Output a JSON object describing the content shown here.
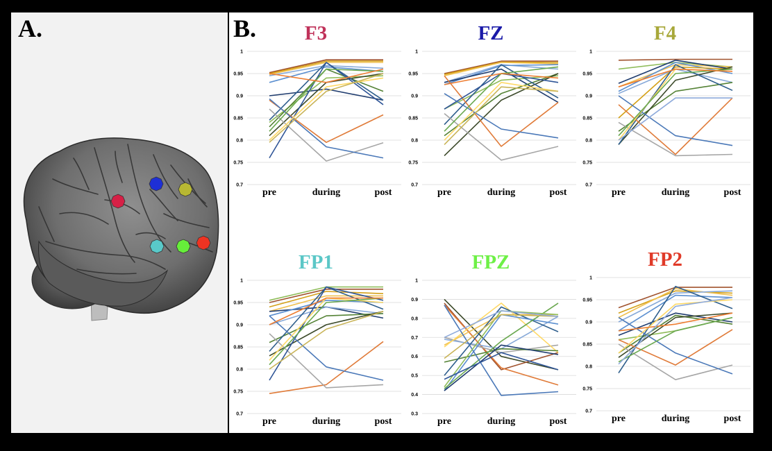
{
  "figure": {
    "panel_a_label": "A.",
    "panel_b_label": "B."
  },
  "electrodes": [
    {
      "name": "F3",
      "color": "#d62046"
    },
    {
      "name": "FZ",
      "color": "#1e2fd6"
    },
    {
      "name": "F4",
      "color": "#b8b833"
    },
    {
      "name": "FP1",
      "color": "#59c9c9"
    },
    {
      "name": "FPZ",
      "color": "#66ee3a"
    },
    {
      "name": "FP2",
      "color": "#ee3322"
    }
  ],
  "chart_data": [
    {
      "type": "line",
      "title": "F3",
      "title_color": "#c0325a",
      "categories": [
        "pre",
        "during",
        "post"
      ],
      "ylim": [
        0.7,
        1.0
      ],
      "yticks": [
        {
          "v": 0.7,
          "t": "0.7"
        },
        {
          "v": 0.75,
          "t": "0.75"
        },
        {
          "v": 0.8,
          "t": "0.8"
        },
        {
          "v": 0.85,
          "t": "0.85"
        },
        {
          "v": 0.9,
          "t": "0.9"
        },
        {
          "v": 0.95,
          "t": "0.95"
        },
        {
          "v": 1.0,
          "t": "1"
        }
      ],
      "grid": true,
      "series": [
        {
          "values": [
            0.952,
            0.981,
            0.981
          ],
          "color": "#a0522d"
        },
        {
          "values": [
            0.95,
            0.978,
            0.978
          ],
          "color": "#d4a017"
        },
        {
          "values": [
            0.948,
            0.975,
            0.975
          ],
          "color": "#f0c050"
        },
        {
          "values": [
            0.945,
            0.968,
            0.962
          ],
          "color": "#87a9d8"
        },
        {
          "values": [
            0.93,
            0.965,
            0.955
          ],
          "color": "#5b8fd0"
        },
        {
          "values": [
            0.9,
            0.915,
            0.89
          ],
          "color": "#1f3c6e"
        },
        {
          "values": [
            0.84,
            0.94,
            0.945
          ],
          "color": "#8fbc5a"
        },
        {
          "values": [
            0.83,
            0.96,
            0.91
          ],
          "color": "#548235"
        },
        {
          "values": [
            0.81,
            0.93,
            0.95
          ],
          "color": "#3c4a2a"
        },
        {
          "values": [
            0.845,
            0.975,
            0.89
          ],
          "color": "#2e5e8c"
        },
        {
          "values": [
            0.89,
            0.795,
            0.857
          ],
          "color": "#e07b39"
        },
        {
          "values": [
            0.87,
            0.753,
            0.794
          ],
          "color": "#a6a6a6"
        },
        {
          "values": [
            0.76,
            0.975,
            0.88
          ],
          "color": "#2f5597"
        },
        {
          "values": [
            0.893,
            0.785,
            0.76
          ],
          "color": "#4a78b8"
        },
        {
          "values": [
            0.8,
            0.92,
            0.94
          ],
          "color": "#ffd966"
        },
        {
          "values": [
            0.82,
            0.96,
            0.955
          ],
          "color": "#6aa84f"
        },
        {
          "values": [
            0.95,
            0.93,
            0.96
          ],
          "color": "#ed7d31"
        },
        {
          "values": [
            0.795,
            0.91,
            0.95
          ],
          "color": "#c9b458"
        }
      ]
    },
    {
      "type": "line",
      "title": "FZ",
      "title_color": "#1a1aa8",
      "categories": [
        "pre",
        "during",
        "post"
      ],
      "ylim": [
        0.7,
        1.0
      ],
      "yticks": [
        {
          "v": 0.7,
          "t": "0.7"
        },
        {
          "v": 0.75,
          "t": "0.75"
        },
        {
          "v": 0.8,
          "t": "0.8"
        },
        {
          "v": 0.85,
          "t": "0.85"
        },
        {
          "v": 0.9,
          "t": "0.9"
        },
        {
          "v": 0.95,
          "t": "0.95"
        },
        {
          "v": 1.0,
          "t": "1"
        }
      ],
      "grid": true,
      "series": [
        {
          "values": [
            0.95,
            0.978,
            0.978
          ],
          "color": "#a0522d"
        },
        {
          "values": [
            0.948,
            0.976,
            0.975
          ],
          "color": "#d4a017"
        },
        {
          "values": [
            0.945,
            0.975,
            0.972
          ],
          "color": "#f0c050"
        },
        {
          "values": [
            0.93,
            0.97,
            0.96
          ],
          "color": "#87a9d8"
        },
        {
          "values": [
            0.925,
            0.968,
            0.97
          ],
          "color": "#5b8fd0"
        },
        {
          "values": [
            0.93,
            0.96,
            0.885
          ],
          "color": "#1f3c6e"
        },
        {
          "values": [
            0.87,
            0.935,
            0.945
          ],
          "color": "#8fbc5a"
        },
        {
          "values": [
            0.81,
            0.905,
            0.95
          ],
          "color": "#548235"
        },
        {
          "values": [
            0.765,
            0.89,
            0.95
          ],
          "color": "#3c4a2a"
        },
        {
          "values": [
            0.835,
            0.97,
            0.895
          ],
          "color": "#2e5e8c"
        },
        {
          "values": [
            0.945,
            0.786,
            0.885
          ],
          "color": "#e07b39"
        },
        {
          "values": [
            0.86,
            0.755,
            0.786
          ],
          "color": "#a6a6a6"
        },
        {
          "values": [
            0.87,
            0.95,
            0.93
          ],
          "color": "#2f5597"
        },
        {
          "values": [
            0.905,
            0.825,
            0.805
          ],
          "color": "#4a78b8"
        },
        {
          "values": [
            0.8,
            0.93,
            0.91
          ],
          "color": "#ffd966"
        },
        {
          "values": [
            0.82,
            0.95,
            0.965
          ],
          "color": "#6aa84f"
        },
        {
          "values": [
            0.925,
            0.95,
            0.94
          ],
          "color": "#ed7d31"
        },
        {
          "values": [
            0.79,
            0.92,
            0.91
          ],
          "color": "#c9b458"
        }
      ]
    },
    {
      "type": "line",
      "title": "F4",
      "title_color": "#a8a83a",
      "categories": [
        "pre",
        "during",
        "post"
      ],
      "ylim": [
        0.7,
        1.0
      ],
      "yticks": [
        {
          "v": 0.7,
          "t": "0.7"
        },
        {
          "v": 0.75,
          "t": "0.75"
        },
        {
          "v": 0.8,
          "t": "0.8"
        },
        {
          "v": 0.85,
          "t": "0.85"
        },
        {
          "v": 0.9,
          "t": "0.9"
        },
        {
          "v": 0.95,
          "t": "0.95"
        },
        {
          "v": 1.0,
          "t": "1"
        }
      ],
      "grid": true,
      "series": [
        {
          "values": [
            0.98,
            0.982,
            0.982
          ],
          "color": "#a0522d"
        },
        {
          "values": [
            0.96,
            0.975,
            0.965
          ],
          "color": "#8fbc5a"
        },
        {
          "values": [
            0.92,
            0.97,
            0.965
          ],
          "color": "#f0c050"
        },
        {
          "values": [
            0.928,
            0.98,
            0.96
          ],
          "color": "#1f3c6e"
        },
        {
          "values": [
            0.91,
            0.975,
            0.95
          ],
          "color": "#5b8fd0"
        },
        {
          "values": [
            0.905,
            0.96,
            0.93
          ],
          "color": "#87a9d8"
        },
        {
          "values": [
            0.85,
            0.965,
            0.96
          ],
          "color": "#d4a017"
        },
        {
          "values": [
            0.82,
            0.91,
            0.93
          ],
          "color": "#548235"
        },
        {
          "values": [
            0.79,
            0.935,
            0.965
          ],
          "color": "#3c4a2a"
        },
        {
          "values": [
            0.79,
            0.97,
            0.912
          ],
          "color": "#2e5e8c"
        },
        {
          "values": [
            0.88,
            0.768,
            0.895
          ],
          "color": "#e07b39"
        },
        {
          "values": [
            0.84,
            0.765,
            0.768
          ],
          "color": "#a6a6a6"
        },
        {
          "values": [
            0.9,
            0.81,
            0.788
          ],
          "color": "#4a78b8"
        },
        {
          "values": [
            0.8,
            0.96,
            0.955
          ],
          "color": "#ffd966"
        },
        {
          "values": [
            0.81,
            0.95,
            0.96
          ],
          "color": "#6aa84f"
        },
        {
          "values": [
            0.92,
            0.96,
            0.955
          ],
          "color": "#ed7d31"
        },
        {
          "values": [
            0.8,
            0.895,
            0.895
          ],
          "color": "#8eaadb"
        }
      ]
    },
    {
      "type": "line",
      "title": "FP1",
      "title_color": "#5bc7c7",
      "categories": [
        "pre",
        "during",
        "post"
      ],
      "ylim": [
        0.7,
        1.0
      ],
      "yticks": [
        {
          "v": 0.7,
          "t": "0.7"
        },
        {
          "v": 0.75,
          "t": "0.75"
        },
        {
          "v": 0.8,
          "t": "0.8"
        },
        {
          "v": 0.85,
          "t": "0.85"
        },
        {
          "v": 0.9,
          "t": "0.9"
        },
        {
          "v": 0.95,
          "t": "0.95"
        },
        {
          "v": 1.0,
          "t": "1"
        }
      ],
      "grid": true,
      "series": [
        {
          "values": [
            0.955,
            0.985,
            0.985
          ],
          "color": "#8fbc5a"
        },
        {
          "values": [
            0.95,
            0.98,
            0.98
          ],
          "color": "#a0522d"
        },
        {
          "values": [
            0.94,
            0.975,
            0.97
          ],
          "color": "#d4a017"
        },
        {
          "values": [
            0.93,
            0.965,
            0.965
          ],
          "color": "#f0c050"
        },
        {
          "values": [
            0.93,
            0.94,
            0.915
          ],
          "color": "#1f3c6e"
        },
        {
          "values": [
            0.92,
            0.955,
            0.95
          ],
          "color": "#5b8fd0"
        },
        {
          "values": [
            0.9,
            0.94,
            0.925
          ],
          "color": "#87a9d8"
        },
        {
          "values": [
            0.86,
            0.92,
            0.925
          ],
          "color": "#548235"
        },
        {
          "values": [
            0.84,
            0.985,
            0.935
          ],
          "color": "#2e5e8c"
        },
        {
          "values": [
            0.83,
            0.9,
            0.93
          ],
          "color": "#3c4a2a"
        },
        {
          "values": [
            0.745,
            0.765,
            0.862
          ],
          "color": "#e07b39"
        },
        {
          "values": [
            0.88,
            0.758,
            0.765
          ],
          "color": "#a6a6a6"
        },
        {
          "values": [
            0.775,
            0.985,
            0.955
          ],
          "color": "#2f5597"
        },
        {
          "values": [
            0.92,
            0.805,
            0.775
          ],
          "color": "#4a78b8"
        },
        {
          "values": [
            0.82,
            0.96,
            0.95
          ],
          "color": "#ffd966"
        },
        {
          "values": [
            0.81,
            0.95,
            0.96
          ],
          "color": "#6aa84f"
        },
        {
          "values": [
            0.9,
            0.96,
            0.96
          ],
          "color": "#ed7d31"
        },
        {
          "values": [
            0.8,
            0.89,
            0.93
          ],
          "color": "#c9b458"
        }
      ]
    },
    {
      "type": "line",
      "title": "FPZ",
      "title_color": "#6ef046",
      "categories": [
        "pre",
        "during",
        "post"
      ],
      "ylim": [
        0.3,
        1.0
      ],
      "yticks": [
        {
          "v": 0.3,
          "t": "0.3"
        },
        {
          "v": 0.4,
          "t": "0.4"
        },
        {
          "v": 0.5,
          "t": "0.5"
        },
        {
          "v": 0.6,
          "t": "0.6"
        },
        {
          "v": 0.7,
          "t": "0.7"
        },
        {
          "v": 0.8,
          "t": "0.8"
        },
        {
          "v": 0.9,
          "t": "0.9"
        },
        {
          "v": 1.0,
          "t": "1"
        }
      ],
      "grid": true,
      "series": [
        {
          "values": [
            0.9,
            0.6,
            0.53
          ],
          "color": "#3c4a2a"
        },
        {
          "values": [
            0.88,
            0.53,
            0.62
          ],
          "color": "#a0522d"
        },
        {
          "values": [
            0.87,
            0.54,
            0.45
          ],
          "color": "#e07b39"
        },
        {
          "values": [
            0.7,
            0.62,
            0.66
          ],
          "color": "#a6a6a6"
        },
        {
          "values": [
            0.69,
            0.64,
            0.81
          ],
          "color": "#87a9d8"
        },
        {
          "values": [
            0.66,
            0.82,
            0.82
          ],
          "color": "#f0c050"
        },
        {
          "values": [
            0.65,
            0.88,
            0.62
          ],
          "color": "#ffd966"
        },
        {
          "values": [
            0.57,
            0.64,
            0.63
          ],
          "color": "#548235"
        },
        {
          "values": [
            0.5,
            0.86,
            0.73
          ],
          "color": "#2e5e8c"
        },
        {
          "values": [
            0.42,
            0.82,
            0.77
          ],
          "color": "#5b8fd0"
        },
        {
          "values": [
            0.43,
            0.68,
            0.88
          ],
          "color": "#6aa84f"
        },
        {
          "values": [
            0.42,
            0.66,
            0.61
          ],
          "color": "#1f3c6e"
        },
        {
          "values": [
            0.87,
            0.395,
            0.415
          ],
          "color": "#4a78b8"
        },
        {
          "values": [
            0.44,
            0.84,
            0.82
          ],
          "color": "#8fbc5a"
        },
        {
          "values": [
            0.48,
            0.62,
            0.53
          ],
          "color": "#2f5597"
        },
        {
          "values": [
            0.59,
            0.82,
            0.81
          ],
          "color": "#c9b458"
        },
        {
          "values": [
            0.7,
            0.84,
            0.81
          ],
          "color": "#8eaadb"
        }
      ]
    },
    {
      "type": "line",
      "title": "FP2",
      "title_color": "#e03a28",
      "categories": [
        "pre",
        "during",
        "post"
      ],
      "ylim": [
        0.7,
        1.0
      ],
      "yticks": [
        {
          "v": 0.7,
          "t": "0.7"
        },
        {
          "v": 0.75,
          "t": "0.75"
        },
        {
          "v": 0.8,
          "t": "0.8"
        },
        {
          "v": 0.85,
          "t": "0.85"
        },
        {
          "v": 0.9,
          "t": "0.9"
        },
        {
          "v": 0.95,
          "t": "0.95"
        },
        {
          "v": 1.0,
          "t": "1"
        }
      ],
      "grid": true,
      "series": [
        {
          "values": [
            0.932,
            0.978,
            0.978
          ],
          "color": "#a0522d"
        },
        {
          "values": [
            0.92,
            0.97,
            0.965
          ],
          "color": "#d4a017"
        },
        {
          "values": [
            0.91,
            0.975,
            0.96
          ],
          "color": "#f0c050"
        },
        {
          "values": [
            0.9,
            0.965,
            0.97
          ],
          "color": "#87a9d8"
        },
        {
          "values": [
            0.88,
            0.96,
            0.955
          ],
          "color": "#5b8fd0"
        },
        {
          "values": [
            0.87,
            0.92,
            0.9
          ],
          "color": "#1f3c6e"
        },
        {
          "values": [
            0.86,
            0.88,
            0.91
          ],
          "color": "#8fbc5a"
        },
        {
          "values": [
            0.83,
            0.915,
            0.895
          ],
          "color": "#548235"
        },
        {
          "values": [
            0.82,
            0.91,
            0.92
          ],
          "color": "#3c4a2a"
        },
        {
          "values": [
            0.785,
            0.98,
            0.93
          ],
          "color": "#2e5e8c"
        },
        {
          "values": [
            0.86,
            0.803,
            0.883
          ],
          "color": "#e07b39"
        },
        {
          "values": [
            0.85,
            0.77,
            0.803
          ],
          "color": "#a6a6a6"
        },
        {
          "values": [
            0.91,
            0.83,
            0.783
          ],
          "color": "#4a78b8"
        },
        {
          "values": [
            0.83,
            0.94,
            0.95
          ],
          "color": "#ffd966"
        },
        {
          "values": [
            0.81,
            0.88,
            0.91
          ],
          "color": "#6aa84f"
        },
        {
          "values": [
            0.88,
            0.895,
            0.92
          ],
          "color": "#ed7d31"
        },
        {
          "values": [
            0.805,
            0.935,
            0.955
          ],
          "color": "#8eaadb"
        }
      ]
    }
  ]
}
